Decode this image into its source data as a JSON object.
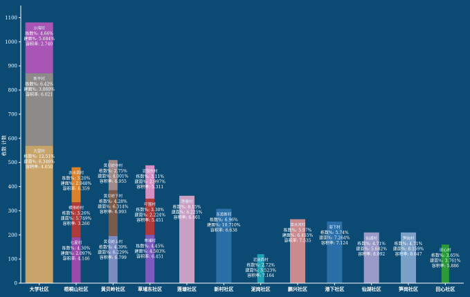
{
  "chart_data": {
    "type": "bar",
    "stacked": true,
    "ylabel": "栋数 计数",
    "ylim": [
      0,
      1150
    ],
    "yticks": [
      0,
      100,
      200,
      300,
      400,
      500,
      600,
      700,
      800,
      900,
      1000,
      1100
    ],
    "grid": false,
    "legend": "none",
    "categories": [
      "大学社区",
      "梧桐山社区",
      "黄贝岭社区",
      "草埔东社区",
      "莲塘社区",
      "新村社区",
      "泥岗社区",
      "鹏兴社区",
      "港下社区",
      "仙湖社区",
      "笋岗社区",
      "田心社区"
    ],
    "bars": [
      {
        "category": "大学社区",
        "segments": [
          {
            "name": "大望村",
            "value": 570,
            "color": "#c9a46a",
            "lines": [
              "栋数%: 12.51%",
              "建面%: 6.346%",
              "容积率: 4.650"
            ]
          },
          {
            "name": "新平村",
            "value": 300,
            "color": "#8f8a8a",
            "lines": [
              "栋数%: 6.42%",
              "建面%: 3.860%",
              "容积率: 6.021"
            ]
          },
          {
            "name": "沙湾村",
            "value": 210,
            "color": "#a855b6",
            "lines": [
              "栋数%: 4.66%",
              "建面%: 5.684%",
              "容积率: 2.740"
            ]
          }
        ]
      },
      {
        "category": "梧桐山社区",
        "segments": [
          {
            "name": "七星村",
            "value": 190,
            "color": "#9a4aa8",
            "lines": [
              "栋数%: 4.30%",
              "建面%: 2.097%",
              "容积率: 4.146"
            ]
          },
          {
            "name": "横排岭村",
            "value": 145,
            "color": "#b03a3a",
            "lines": [
              "栋数%: 3.26%",
              "建面%: 5.749%",
              "容积率: 3.260"
            ]
          },
          {
            "name": "赤水洞村",
            "value": 145,
            "color": "#d9822b",
            "lines": [
              "栋数%: 3.20%",
              "建面%: 2.948%",
              "容积率: 6.359"
            ]
          }
        ]
      },
      {
        "category": "黄贝岭社区",
        "segments": [
          {
            "name": "黄贝岭上村",
            "value": 195,
            "color": "#7a8cc0",
            "lines": [
              "栋数%: 4.39%",
              "建面%: 6.229%",
              "容积率: 6.799"
            ]
          },
          {
            "name": "黄贝岭下村",
            "value": 190,
            "color": "#7a5a4a",
            "lines": [
              "栋数%: 4.28%",
              "建面%: 6.314%",
              "容积率: 6.993"
            ]
          },
          {
            "name": "黄贝岭中村",
            "value": 125,
            "color": "#a08a8a",
            "lines": [
              "栋数%: 2.75%",
              "建面%: 4.001%",
              "容积率: 6.955"
            ]
          }
        ]
      },
      {
        "category": "草埔东社区",
        "segments": [
          {
            "name": "草埔村",
            "value": 200,
            "color": "#7a5bbd",
            "lines": [
              "栋数%: 4.45%",
              "建面%: 4.503%",
              "容积率: 6.451"
            ]
          },
          {
            "name": "吓围村",
            "value": 150,
            "color": "#b03a3a",
            "lines": [
              "栋数%: 3.38%",
              "建面%: 2.224%",
              "容积率: 5.451"
            ]
          },
          {
            "name": "泥围东村",
            "value": 138,
            "color": "#d48fc4",
            "lines": [
              "栋数%: 3.11%",
              "建面%: 2.997%",
              "容积率: 5.311"
            ]
          }
        ]
      },
      {
        "category": "莲塘社区",
        "segments": [
          {
            "name": "莲塘村",
            "value": 362,
            "color": "#c9a0c4",
            "lines": [
              "栋数%: 8.15%",
              "建面%: 6.225%",
              "容积率: 6.461"
            ]
          }
        ]
      },
      {
        "category": "新村社区",
        "segments": [
          {
            "name": "东英新村",
            "value": 308,
            "color": "#2a6fa8",
            "lines": [
              "栋数%: 6.96%",
              "建面%: 10.710%",
              "容积率: 6.638"
            ]
          }
        ]
      },
      {
        "category": "泥岗社区",
        "segments": [
          {
            "name": "泥岗西村",
            "value": 120,
            "color": "#1fa1b5",
            "lines": [
              "栋数%: 2.72%",
              "建面%: 3.523%",
              "容积率: 7.164"
            ]
          }
        ]
      },
      {
        "category": "鹏兴社区",
        "segments": [
          {
            "name": "清水河村",
            "value": 265,
            "color": "#c98b8f",
            "lines": [
              "栋数%: 5.97%",
              "建面%: 6.455%",
              "容积率: 7.535"
            ]
          }
        ]
      },
      {
        "category": "港下社区",
        "segments": [
          {
            "name": "港下村",
            "value": 255,
            "color": "#2a6fa8",
            "lines": [
              "栋数%: 5.74%",
              "建面%: 7.264%",
              "容积率: 7.124"
            ]
          }
        ]
      },
      {
        "category": "仙湖社区",
        "segments": [
          {
            "name": "仙湖村",
            "value": 210,
            "color": "#9a9ac8",
            "lines": [
              "栋数%: 4.71%",
              "建面%: 5.682%",
              "容积率: 8.092"
            ]
          }
        ]
      },
      {
        "category": "笋岗社区",
        "segments": [
          {
            "name": "笋岗村",
            "value": 210,
            "color": "#7aa0c8",
            "lines": [
              "栋数%: 4.71%",
              "建面%: 8.159%",
              "容积率: 8.647"
            ]
          }
        ]
      },
      {
        "category": "田心社区",
        "segments": [
          {
            "name": "田心村",
            "value": 160,
            "color": "#2a9a3a",
            "lines": [
              "栋数%: 3.65%",
              "建面%: 3.761%",
              "容积率: 5.886"
            ]
          }
        ]
      }
    ]
  }
}
